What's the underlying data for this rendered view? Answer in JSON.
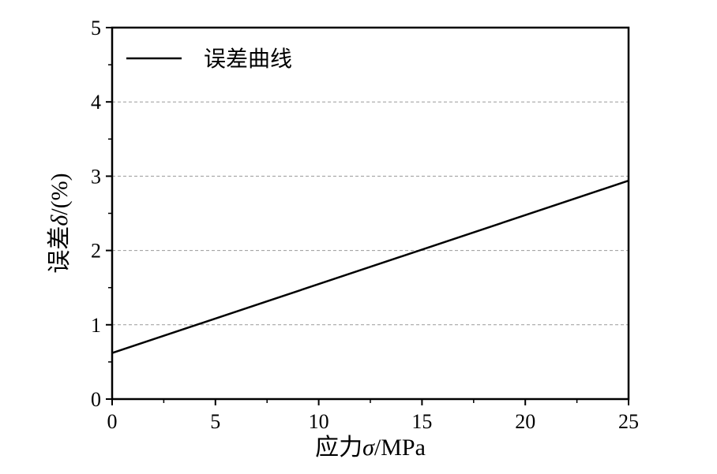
{
  "chart_data": {
    "type": "line",
    "title": "",
    "x": [
      0,
      25
    ],
    "series": [
      {
        "name": "误差曲线",
        "values": [
          0.62,
          2.94
        ],
        "color": "#000000"
      }
    ],
    "xlabel": {
      "prefix": "应力",
      "symbol": "σ",
      "unit": "/MPa"
    },
    "ylabel": {
      "prefix": "误差",
      "symbol": "δ",
      "unit": "/(%)"
    },
    "xlim": [
      0,
      25
    ],
    "ylim": [
      0,
      5
    ],
    "xticks": [
      "0",
      "5",
      "10",
      "15",
      "20",
      "25"
    ],
    "yticks": [
      "0",
      "1",
      "2",
      "3",
      "4",
      "5"
    ],
    "grid": "horizontal dashed",
    "legend_position": "top-left"
  }
}
